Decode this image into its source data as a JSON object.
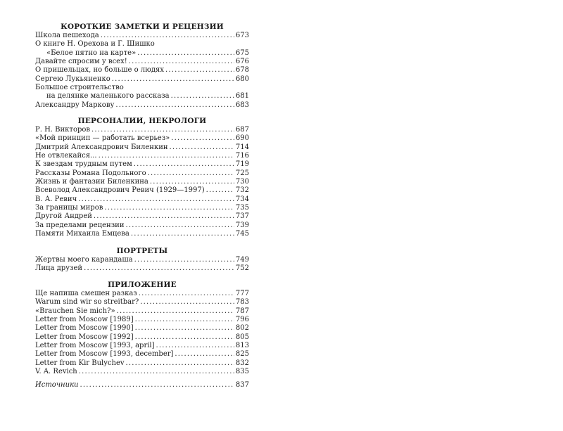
{
  "sections": [
    {
      "heading": "КОРОТКИЕ ЗАМЕТКИ И РЕЦЕНЗИИ",
      "entries": [
        {
          "title": "Школа пешехода",
          "page": "673"
        },
        {
          "title": "О книге Н. Орехова и Г. Шишко",
          "title_cont": "«Белое пятно на карте»",
          "page": "675"
        },
        {
          "title": "Давайте спросим у всех!",
          "page": "676"
        },
        {
          "title": "О пришельцах, но больше о людях",
          "page": "678"
        },
        {
          "title": "Сергею Лукьяненко",
          "page": "680"
        },
        {
          "title": "Большое строительство",
          "title_cont": "на делянке маленького рассказа",
          "page": "681"
        },
        {
          "title": "Александру Маркову",
          "page": "683"
        }
      ]
    },
    {
      "heading": "ПЕРСОНАЛИИ, НЕКРОЛОГИ",
      "entries": [
        {
          "title": "Р. Н. Викторов",
          "page": "687"
        },
        {
          "title": "«Мой принцип — работать всерьез»",
          "page": "690"
        },
        {
          "title": "Дмитрий Александрович Биленкин",
          "page": "714"
        },
        {
          "title": "Не отвлекайся...",
          "page": "716"
        },
        {
          "title": "К звездам трудным путем",
          "page": "719"
        },
        {
          "title": "Рассказы Романа Подольного",
          "page": "725"
        },
        {
          "title": "Жизнь и фантазии Биленкина",
          "page": "730"
        },
        {
          "title": "Всеволод Александрович Ревич (1929—1997)",
          "page": "732"
        },
        {
          "title": "В. А. Ревич",
          "page": "734"
        },
        {
          "title": "За границы миров",
          "page": "735"
        },
        {
          "title": "Другой Андрей",
          "page": "737"
        },
        {
          "title": "За пределами рецензии",
          "page": "739"
        },
        {
          "title": "Памяти Михаила Емцева",
          "page": "745"
        }
      ]
    },
    {
      "heading": "ПОРТРЕТЫ",
      "entries": [
        {
          "title": "Жертвы моего карандаша",
          "page": "749"
        },
        {
          "title": "Лица друзей",
          "page": "752"
        }
      ]
    },
    {
      "heading": "ПРИЛОЖЕНИЕ",
      "entries": [
        {
          "title": "Ще напиша смешен разказ",
          "page": "777"
        },
        {
          "title": "Warum sind wir so streitbar?",
          "page": "783"
        },
        {
          "title": "«Brauchen Sie mich?»",
          "page": "787"
        },
        {
          "title": "Letter from Moscow [1989]",
          "page": "796"
        },
        {
          "title": "Letter from Moscow [1990]",
          "page": "802"
        },
        {
          "title": "Letter from Moscow [1992]",
          "page": "805"
        },
        {
          "title": "Letter from Moscow [1993, april]",
          "page": "813"
        },
        {
          "title": "Letter from Moscow [1993, december]",
          "page": "825"
        },
        {
          "title": "Letter from Kir Bulychev",
          "page": "832"
        },
        {
          "title": "V. A. Revich",
          "page": "835"
        }
      ]
    }
  ],
  "sources": {
    "title": "Источники",
    "page": "837"
  }
}
